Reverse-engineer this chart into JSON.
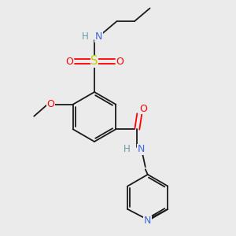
{
  "background_color": "#ebebeb",
  "figsize": [
    3.0,
    3.0
  ],
  "dpi": 100,
  "colors": {
    "bond": "#1a1a1a",
    "N": "#4169E1",
    "H": "#5f9ea0",
    "O": "#FF0000",
    "S": "#cccc00"
  },
  "lw": 1.3,
  "fs": 8.5
}
